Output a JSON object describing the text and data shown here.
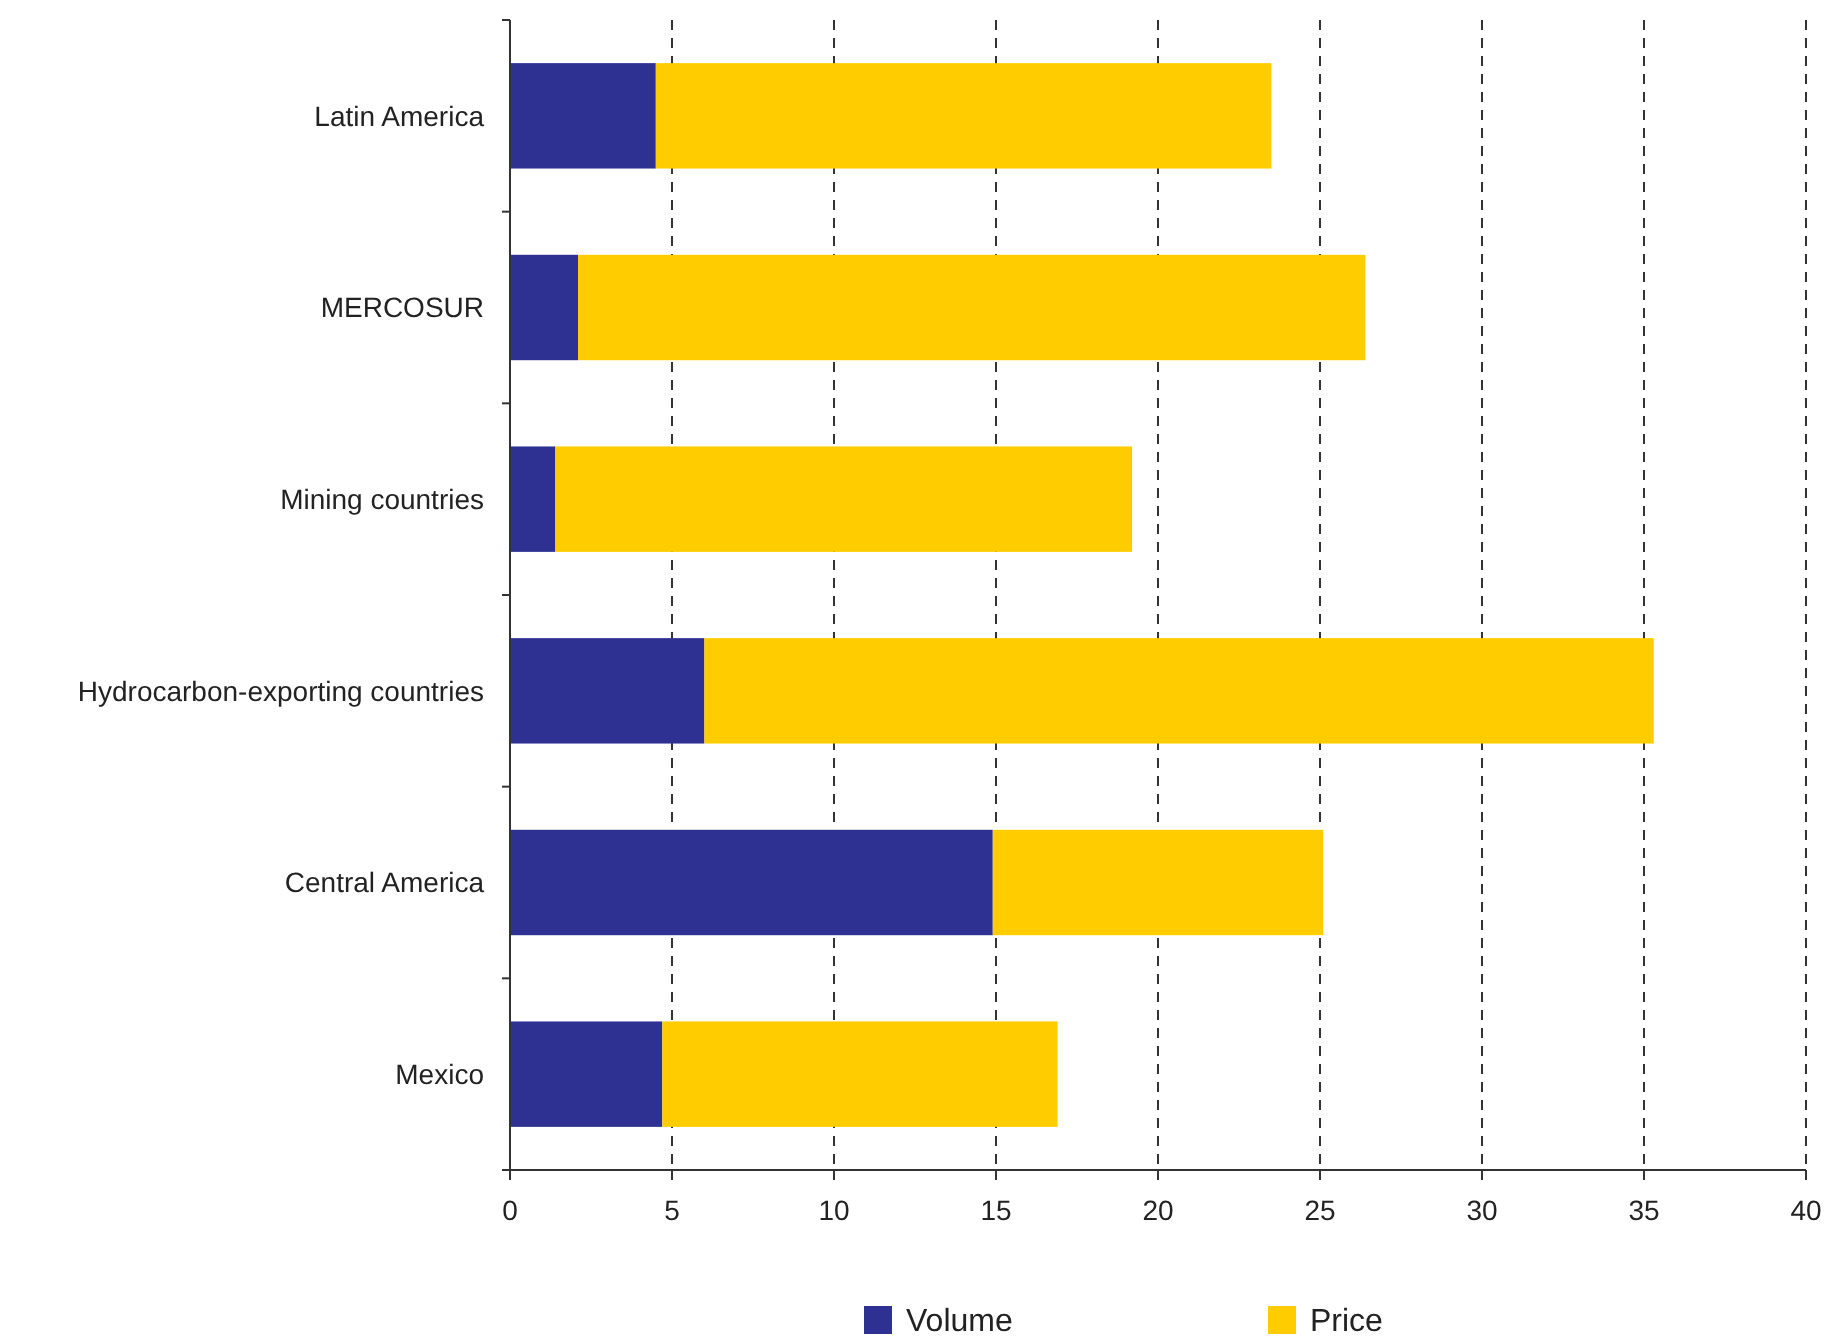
{
  "chart_data": {
    "type": "bar",
    "orientation": "horizontal",
    "stacked": true,
    "categories": [
      "Latin America",
      "MERCOSUR",
      "Mining countries",
      "Hydrocarbon-exporting countries",
      "Central America",
      "Mexico"
    ],
    "series": [
      {
        "name": "Volume",
        "color": "#2e3192",
        "values": [
          4.5,
          2.1,
          1.4,
          6.0,
          14.9,
          4.7
        ]
      },
      {
        "name": "Price",
        "color": "#ffcc00",
        "values": [
          19.0,
          24.3,
          17.8,
          29.3,
          10.2,
          12.2
        ]
      }
    ],
    "xlim": [
      0,
      40
    ],
    "xticks": [
      0,
      5,
      10,
      15,
      20,
      25,
      30,
      35,
      40
    ],
    "grid": "x",
    "legend": "bottom"
  }
}
